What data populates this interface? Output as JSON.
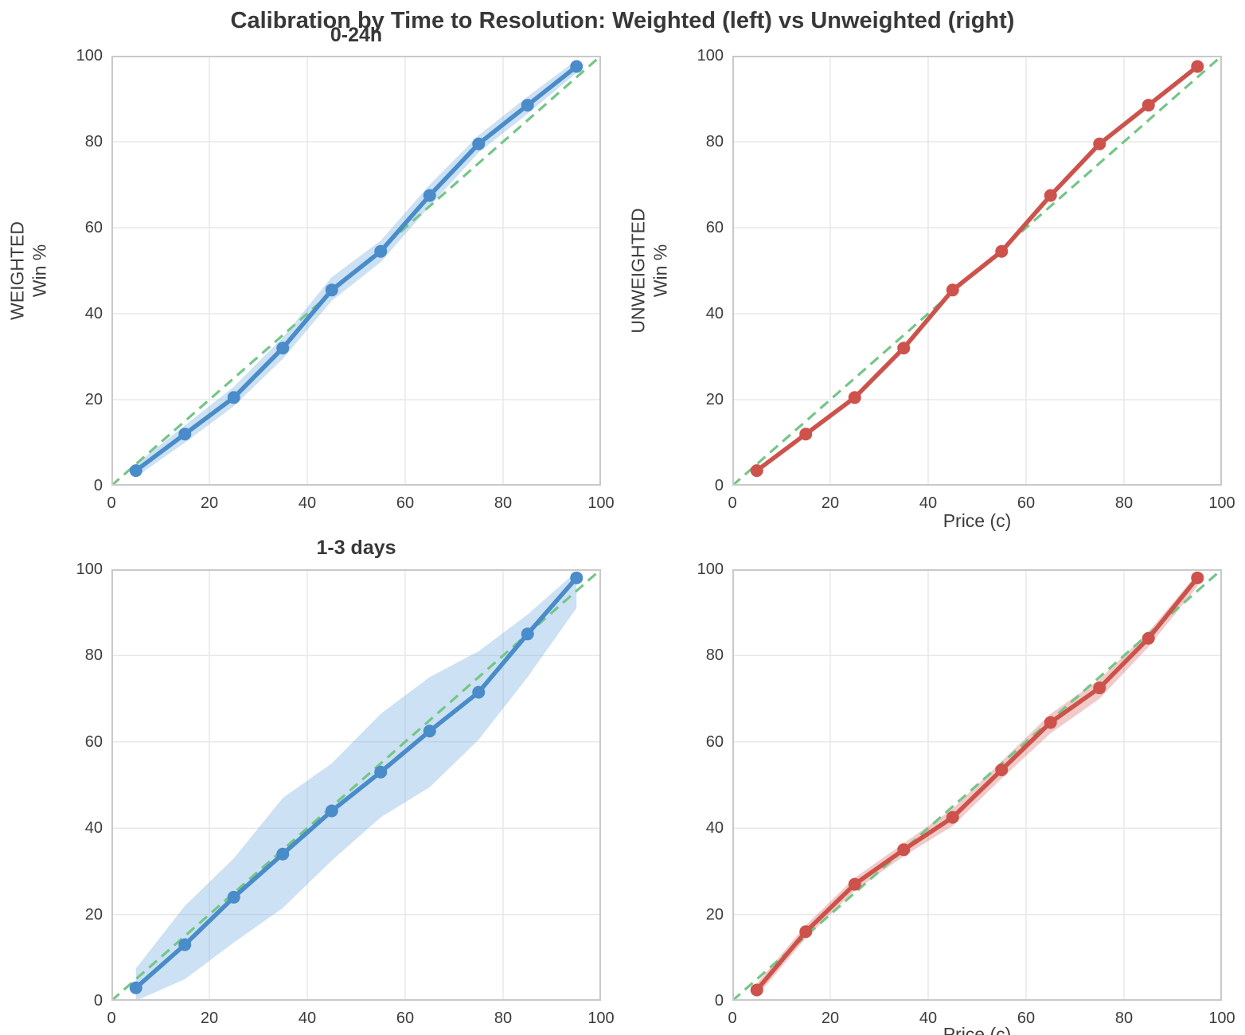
{
  "title": "Calibration by Time to Resolution: Weighted (left) vs Unweighted (right)",
  "style": {
    "grid_color": "#e8e8e8",
    "spine_color": "#c9c9c9",
    "diagonal_color": "#74c687",
    "background": "#ffffff",
    "text_color": "#3c3c3c"
  },
  "chart_data": [
    {
      "id": "weighted-0-24h",
      "type": "line",
      "title": "0-24h",
      "ylabel": "WEIGHTED\nWin %",
      "line_color": "#4a8bc9",
      "band_color": "#7fb3e0",
      "band_opacity": 0.4,
      "xlim": [
        0,
        100
      ],
      "ylim": [
        0,
        100
      ],
      "xticks": [
        0,
        20,
        40,
        60,
        80,
        100
      ],
      "yticks": [
        0,
        20,
        40,
        60,
        80,
        100
      ],
      "diagonal": true,
      "x": [
        5,
        15,
        25,
        35,
        45,
        55,
        65,
        75,
        85,
        95
      ],
      "y": [
        3.5,
        12,
        20.5,
        32,
        45.5,
        54.5,
        67.5,
        79.5,
        88.5,
        97.5
      ],
      "band_lower": [
        2,
        10,
        18.5,
        29.5,
        43,
        52,
        65,
        77.5,
        86.5,
        96
      ],
      "band_upper": [
        5,
        14,
        23,
        34.5,
        48.5,
        57,
        70,
        81.5,
        90.5,
        99
      ]
    },
    {
      "id": "unweighted-0-24h",
      "type": "line",
      "xlabel": "Price (c)",
      "ylabel": "UNWEIGHTED\nWin %",
      "line_color": "#cd524b",
      "xlim": [
        0,
        100
      ],
      "ylim": [
        0,
        100
      ],
      "xticks": [
        0,
        20,
        40,
        60,
        80,
        100
      ],
      "yticks": [
        0,
        20,
        40,
        60,
        80,
        100
      ],
      "diagonal": true,
      "x": [
        5,
        15,
        25,
        35,
        45,
        55,
        65,
        75,
        85,
        95
      ],
      "y": [
        3.5,
        12,
        20.5,
        32,
        45.5,
        54.5,
        67.5,
        79.5,
        88.5,
        97.5
      ]
    },
    {
      "id": "weighted-1-3-days",
      "type": "line",
      "title": "1-3 days",
      "line_color": "#4a8bc9",
      "band_color": "#7fb3e0",
      "band_opacity": 0.4,
      "xlim": [
        0,
        100
      ],
      "ylim": [
        0,
        100
      ],
      "xticks": [
        0,
        20,
        40,
        60,
        80,
        100
      ],
      "yticks": [
        0,
        20,
        40,
        60,
        80,
        100
      ],
      "diagonal": true,
      "x": [
        5,
        15,
        25,
        35,
        45,
        55,
        65,
        75,
        85,
        95
      ],
      "y": [
        3,
        13,
        24,
        34,
        44,
        53,
        62.5,
        71.5,
        85,
        98
      ],
      "band_lower": [
        0,
        5,
        13.5,
        21.5,
        32.5,
        42.5,
        49.5,
        60.5,
        75,
        91
      ],
      "band_upper": [
        7.5,
        22,
        33,
        47,
        55,
        66.5,
        75,
        81,
        89.5,
        99.5
      ]
    },
    {
      "id": "unweighted-1-3-days",
      "type": "line",
      "xlabel": "Price (c)",
      "line_color": "#cd524b",
      "band_color": "#cd524b",
      "band_opacity": 0.3,
      "xlim": [
        0,
        100
      ],
      "ylim": [
        0,
        100
      ],
      "xticks": [
        0,
        20,
        40,
        60,
        80,
        100
      ],
      "yticks": [
        0,
        20,
        40,
        60,
        80,
        100
      ],
      "diagonal": true,
      "x": [
        5,
        15,
        25,
        35,
        45,
        55,
        65,
        75,
        85,
        95
      ],
      "y": [
        2.5,
        16,
        27,
        35,
        42.5,
        53.5,
        64.5,
        72.5,
        84,
        98
      ],
      "band_lower": [
        1,
        14.5,
        25.5,
        33.5,
        40.5,
        51.5,
        62,
        70,
        82,
        96
      ],
      "band_upper": [
        4,
        17.5,
        28.5,
        36.5,
        44.5,
        55.5,
        66.5,
        74.5,
        85.5,
        99
      ]
    }
  ]
}
